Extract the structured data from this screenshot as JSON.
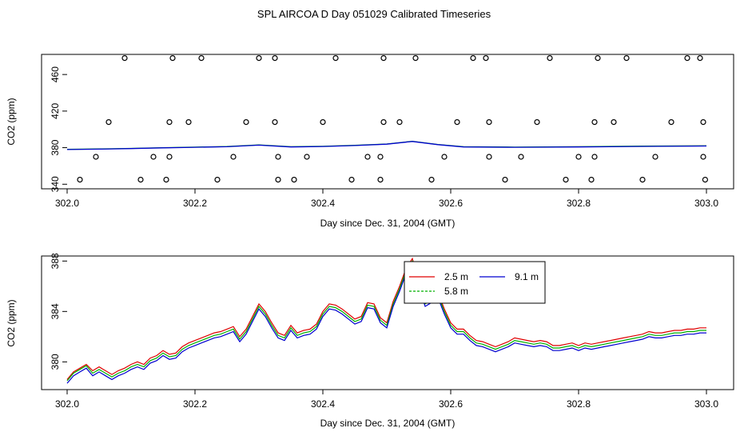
{
  "title": "SPL AIRCOA D  Day 051029  Calibrated Timeseries",
  "colors": {
    "red": "#e00000",
    "green": "#00b000",
    "blue": "#0000d0"
  },
  "chart_data": [
    {
      "type": "scatter",
      "xlabel": "Day since Dec. 31, 2004 (GMT)",
      "ylabel": "CO2 (ppm)",
      "xlim": [
        302.0,
        303.0
      ],
      "ylim": [
        335,
        482
      ],
      "xticks": [
        "302.0",
        "302.2",
        "302.4",
        "302.6",
        "302.8",
        "303.0"
      ],
      "yticks": [
        "340",
        "380",
        "420",
        "460"
      ],
      "points_x": [
        302.02,
        302.045,
        302.065,
        302.09,
        302.115,
        302.135,
        302.155,
        302.16,
        302.16,
        302.165,
        302.19,
        302.21,
        302.235,
        302.26,
        302.28,
        302.3,
        302.325,
        302.325,
        302.33,
        302.33,
        302.355,
        302.375,
        302.4,
        302.42,
        302.445,
        302.47,
        302.49,
        302.49,
        302.495,
        302.495,
        302.52,
        302.545,
        302.57,
        302.59,
        302.61,
        302.635,
        302.655,
        302.66,
        302.66,
        302.685,
        302.71,
        302.735,
        302.755,
        302.78,
        302.8,
        302.82,
        302.825,
        302.825,
        302.83,
        302.855,
        302.875,
        302.9,
        302.92,
        302.945,
        302.97,
        302.99,
        302.995,
        302.995,
        302.998
      ],
      "points_y": [
        345,
        370,
        408,
        478,
        345,
        370,
        345,
        370,
        408,
        478,
        408,
        478,
        345,
        370,
        408,
        478,
        478,
        408,
        370,
        345,
        345,
        370,
        408,
        478,
        345,
        370,
        370,
        345,
        408,
        478,
        408,
        478,
        345,
        370,
        408,
        478,
        478,
        408,
        370,
        345,
        370,
        408,
        478,
        345,
        370,
        345,
        370,
        408,
        478,
        408,
        478,
        345,
        370,
        408,
        478,
        478,
        408,
        370,
        345
      ],
      "series": [
        {
          "color": "green",
          "x": [
            302.0,
            302.05,
            302.1,
            302.15,
            302.2,
            302.25,
            302.3,
            302.35,
            302.4,
            302.45,
            302.5,
            302.54,
            302.58,
            302.62,
            302.7,
            302.8,
            302.9,
            303.0
          ],
          "y": [
            378.2,
            378.6,
            379.2,
            380.0,
            380.6,
            381.2,
            383.0,
            381.0,
            381.5,
            382.5,
            384.0,
            387.0,
            383.5,
            381.0,
            380.6,
            381.0,
            381.6,
            382.0
          ]
        },
        {
          "color": "blue",
          "x": [
            302.0,
            302.05,
            302.1,
            302.15,
            302.2,
            302.25,
            302.3,
            302.35,
            302.4,
            302.45,
            302.5,
            302.54,
            302.58,
            302.62,
            302.7,
            302.8,
            302.9,
            303.0
          ],
          "y": [
            378.0,
            378.4,
            379.0,
            379.8,
            380.4,
            381.0,
            382.8,
            380.8,
            381.3,
            382.3,
            383.8,
            386.8,
            383.3,
            380.8,
            380.4,
            380.8,
            381.4,
            381.8
          ]
        }
      ]
    },
    {
      "type": "line",
      "xlabel": "Day since Dec. 31, 2004 (GMT)",
      "ylabel": "CO2 (ppm)",
      "xlim": [
        302.0,
        303.0
      ],
      "ylim": [
        377.8,
        388.4
      ],
      "xticks": [
        "302.0",
        "302.2",
        "302.4",
        "302.6",
        "302.8",
        "303.0"
      ],
      "yticks": [
        "380",
        "384",
        "388"
      ],
      "legend": {
        "placement": "top-center",
        "entries": [
          {
            "label": "2.5 m",
            "color": "red"
          },
          {
            "label": "9.1 m",
            "color": "blue"
          },
          {
            "label": "5.8 m",
            "color": "green"
          }
        ]
      },
      "x": [
        302.0,
        302.01,
        302.02,
        302.03,
        302.04,
        302.05,
        302.06,
        302.07,
        302.08,
        302.09,
        302.1,
        302.11,
        302.12,
        302.13,
        302.14,
        302.15,
        302.16,
        302.17,
        302.18,
        302.19,
        302.2,
        302.21,
        302.22,
        302.23,
        302.24,
        302.25,
        302.26,
        302.27,
        302.28,
        302.29,
        302.3,
        302.31,
        302.32,
        302.33,
        302.34,
        302.35,
        302.36,
        302.37,
        302.38,
        302.39,
        302.4,
        302.41,
        302.42,
        302.43,
        302.44,
        302.45,
        302.46,
        302.47,
        302.48,
        302.49,
        302.5,
        302.51,
        302.52,
        302.53,
        302.54,
        302.55,
        302.56,
        302.57,
        302.58,
        302.59,
        302.6,
        302.61,
        302.62,
        302.63,
        302.64,
        302.65,
        302.66,
        302.67,
        302.68,
        302.69,
        302.7,
        302.71,
        302.72,
        302.73,
        302.74,
        302.75,
        302.76,
        302.77,
        302.78,
        302.79,
        302.8,
        302.81,
        302.82,
        302.83,
        302.84,
        302.85,
        302.86,
        302.87,
        302.88,
        302.89,
        302.9,
        302.91,
        302.92,
        302.93,
        302.94,
        302.95,
        302.96,
        302.97,
        302.98,
        302.99,
        303.0
      ],
      "series": [
        {
          "name": "2.5 m",
          "color": "red",
          "y": [
            378.6,
            379.2,
            379.5,
            379.8,
            379.3,
            379.6,
            379.3,
            379.0,
            379.3,
            379.5,
            379.8,
            380.0,
            379.8,
            380.3,
            380.5,
            380.9,
            380.6,
            380.7,
            381.2,
            381.5,
            381.7,
            381.9,
            382.1,
            382.3,
            382.4,
            382.6,
            382.8,
            382.0,
            382.6,
            383.6,
            384.6,
            384.0,
            383.1,
            382.3,
            382.1,
            382.9,
            382.3,
            382.5,
            382.6,
            383.0,
            384.0,
            384.6,
            384.5,
            384.2,
            383.8,
            383.4,
            383.6,
            384.7,
            384.6,
            383.5,
            383.1,
            384.8,
            386.0,
            387.4,
            388.2,
            386.4,
            384.8,
            385.1,
            385.5,
            384.2,
            383.1,
            382.6,
            382.6,
            382.1,
            381.7,
            381.6,
            381.4,
            381.2,
            381.4,
            381.6,
            381.9,
            381.8,
            381.7,
            381.6,
            381.7,
            381.6,
            381.3,
            381.3,
            381.4,
            381.5,
            381.3,
            381.5,
            381.4,
            381.5,
            381.6,
            381.7,
            381.8,
            381.9,
            382.0,
            382.1,
            382.2,
            382.4,
            382.3,
            382.3,
            382.4,
            382.5,
            382.5,
            382.6,
            382.6,
            382.7,
            382.7
          ]
        },
        {
          "name": "5.8 m",
          "color": "green",
          "y": [
            378.5,
            379.1,
            379.4,
            379.7,
            379.1,
            379.4,
            379.1,
            378.8,
            379.1,
            379.3,
            379.6,
            379.8,
            379.6,
            380.1,
            380.3,
            380.7,
            380.4,
            380.5,
            381.0,
            381.3,
            381.5,
            381.7,
            381.9,
            382.1,
            382.2,
            382.4,
            382.6,
            381.8,
            382.4,
            383.4,
            384.4,
            383.8,
            382.9,
            382.1,
            381.9,
            382.7,
            382.1,
            382.3,
            382.4,
            382.8,
            383.8,
            384.4,
            384.3,
            384.0,
            383.6,
            383.2,
            383.4,
            384.5,
            384.4,
            383.3,
            382.9,
            384.6,
            385.8,
            387.2,
            388.0,
            386.2,
            384.6,
            384.9,
            385.3,
            384.0,
            382.9,
            382.4,
            382.4,
            381.9,
            381.5,
            381.4,
            381.2,
            381.0,
            381.2,
            381.4,
            381.7,
            381.6,
            381.5,
            381.4,
            381.5,
            381.4,
            381.1,
            381.1,
            381.2,
            381.3,
            381.1,
            381.3,
            381.2,
            381.3,
            381.4,
            381.5,
            381.6,
            381.7,
            381.8,
            381.9,
            382.0,
            382.2,
            382.1,
            382.1,
            382.2,
            382.3,
            382.3,
            382.4,
            382.4,
            382.5,
            382.5
          ]
        },
        {
          "name": "9.1 m",
          "color": "blue",
          "y": [
            378.3,
            378.9,
            379.2,
            379.5,
            378.9,
            379.2,
            378.9,
            378.6,
            378.9,
            379.1,
            379.4,
            379.6,
            379.4,
            379.9,
            380.1,
            380.5,
            380.2,
            380.3,
            380.8,
            381.1,
            381.3,
            381.5,
            381.7,
            381.9,
            382.0,
            382.2,
            382.4,
            381.6,
            382.2,
            383.2,
            384.2,
            383.6,
            382.7,
            381.9,
            381.7,
            382.5,
            381.9,
            382.1,
            382.2,
            382.6,
            383.6,
            384.2,
            384.1,
            383.8,
            383.4,
            383.0,
            383.2,
            384.3,
            384.2,
            383.1,
            382.7,
            384.4,
            385.6,
            387.0,
            387.8,
            386.0,
            384.4,
            384.7,
            385.1,
            383.8,
            382.7,
            382.2,
            382.2,
            381.7,
            381.3,
            381.2,
            381.0,
            380.8,
            381.0,
            381.2,
            381.5,
            381.4,
            381.3,
            381.2,
            381.3,
            381.2,
            380.9,
            380.9,
            381.0,
            381.1,
            380.9,
            381.1,
            381.0,
            381.1,
            381.2,
            381.3,
            381.4,
            381.5,
            381.6,
            381.7,
            381.8,
            382.0,
            381.9,
            381.9,
            382.0,
            382.1,
            382.1,
            382.2,
            382.2,
            382.3,
            382.3
          ]
        }
      ]
    }
  ]
}
